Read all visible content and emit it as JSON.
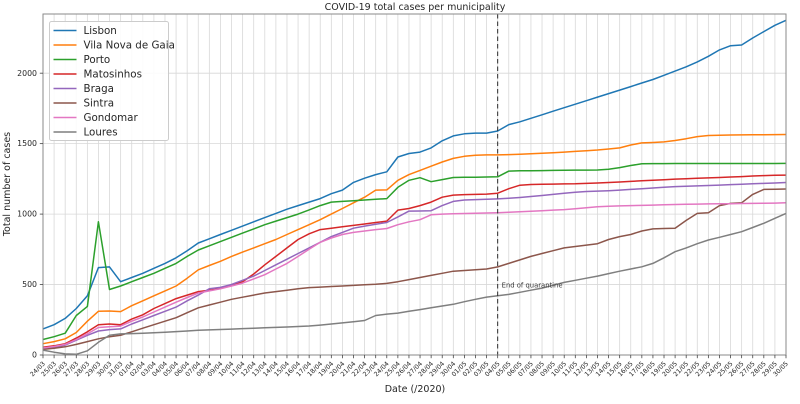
{
  "chart_data": {
    "type": "line",
    "title": "COVID-19 total cases per municipality",
    "xlabel": "Date (/2020)",
    "ylabel": "Total number of cases",
    "grid": true,
    "legend_position": "upper left",
    "ylim": [
      0,
      2420
    ],
    "yticks": [
      0,
      500,
      1000,
      1500,
      2000
    ],
    "x_tick_labels": [
      "24/03",
      "25/03",
      "26/03",
      "27/03",
      "28/03",
      "29/03",
      "30/03",
      "31/03",
      "01/04",
      "02/04",
      "03/04",
      "04/04",
      "05/04",
      "06/04",
      "07/04",
      "08/04",
      "09/04",
      "10/04",
      "11/04",
      "12/04",
      "13/04",
      "14/04",
      "15/04",
      "16/04",
      "17/04",
      "18/04",
      "19/04",
      "20/04",
      "21/04",
      "22/04",
      "23/04",
      "24/04",
      "25/04",
      "26/04",
      "27/04",
      "28/04",
      "29/04",
      "30/04",
      "01/05",
      "02/05",
      "03/05",
      "04/05",
      "05/05",
      "06/05",
      "07/05",
      "08/05",
      "09/05",
      "10/05",
      "11/05",
      "12/05",
      "13/05",
      "14/05",
      "15/05",
      "16/05",
      "17/05",
      "18/05",
      "19/05",
      "20/05",
      "21/05",
      "22/05",
      "23/05",
      "24/05",
      "25/05",
      "26/05",
      "27/05",
      "28/05",
      "29/05",
      "30/05"
    ],
    "vline": {
      "x_label": "04/05",
      "x_index": 41,
      "style": "dashed",
      "color": "#2b2b2b"
    },
    "annotation": {
      "text": "End of quarantine",
      "x_index": 41,
      "y_value": 480
    },
    "colors": {
      "grid": "#d8d8d8",
      "spine": "#8a8a8a",
      "legend_border": "#cccccc"
    },
    "series": [
      {
        "name": "Lisbon",
        "color": "#1f77b4",
        "values": [
          185,
          215,
          260,
          330,
          420,
          620,
          625,
          520,
          550,
          580,
          615,
          650,
          690,
          740,
          795,
          825,
          855,
          885,
          915,
          945,
          975,
          1005,
          1035,
          1060,
          1085,
          1110,
          1145,
          1170,
          1225,
          1255,
          1280,
          1300,
          1405,
          1430,
          1440,
          1470,
          1520,
          1555,
          1570,
          1575,
          1575,
          1590,
          1635,
          1655,
          1680,
          1705,
          1730,
          1755,
          1780,
          1805,
          1830,
          1855,
          1880,
          1905,
          1930,
          1955,
          1985,
          2015,
          2045,
          2080,
          2120,
          2165,
          2195,
          2200,
          2250,
          2295,
          2340,
          2375
        ]
      },
      {
        "name": "Vila Nova de Gaia",
        "color": "#ff7f0e",
        "values": [
          80,
          95,
          115,
          160,
          240,
          310,
          312,
          308,
          350,
          385,
          420,
          455,
          490,
          545,
          605,
          635,
          665,
          700,
          730,
          760,
          790,
          820,
          855,
          890,
          925,
          960,
          1000,
          1040,
          1080,
          1120,
          1170,
          1172,
          1240,
          1280,
          1310,
          1340,
          1370,
          1395,
          1410,
          1418,
          1420,
          1420,
          1422,
          1424,
          1428,
          1432,
          1436,
          1440,
          1445,
          1450,
          1455,
          1462,
          1470,
          1490,
          1505,
          1508,
          1512,
          1522,
          1535,
          1550,
          1558,
          1560,
          1561,
          1562,
          1563,
          1563,
          1564,
          1565
        ]
      },
      {
        "name": "Porto",
        "color": "#2ca02c",
        "values": [
          110,
          130,
          155,
          280,
          345,
          945,
          465,
          490,
          520,
          550,
          580,
          615,
          650,
          700,
          745,
          775,
          805,
          835,
          865,
          895,
          925,
          950,
          975,
          1000,
          1030,
          1060,
          1085,
          1090,
          1095,
          1100,
          1105,
          1110,
          1190,
          1240,
          1258,
          1230,
          1245,
          1260,
          1262,
          1262,
          1263,
          1265,
          1305,
          1307,
          1308,
          1309,
          1310,
          1311,
          1312,
          1312,
          1313,
          1318,
          1330,
          1345,
          1357,
          1358,
          1358,
          1359,
          1359,
          1359,
          1359,
          1359,
          1359,
          1359,
          1359,
          1359,
          1359,
          1360
        ]
      },
      {
        "name": "Matosinhos",
        "color": "#d62728",
        "values": [
          55,
          65,
          80,
          120,
          165,
          215,
          220,
          215,
          255,
          285,
          330,
          365,
          400,
          425,
          450,
          460,
          472,
          495,
          520,
          575,
          640,
          700,
          760,
          820,
          860,
          890,
          900,
          910,
          920,
          930,
          940,
          950,
          1028,
          1040,
          1060,
          1085,
          1120,
          1135,
          1138,
          1140,
          1142,
          1148,
          1180,
          1205,
          1210,
          1212,
          1213,
          1214,
          1215,
          1218,
          1221,
          1224,
          1228,
          1232,
          1236,
          1240,
          1244,
          1248,
          1251,
          1254,
          1257,
          1260,
          1263,
          1266,
          1270,
          1273,
          1275,
          1277
        ]
      },
      {
        "name": "Braga",
        "color": "#9467bd",
        "values": [
          45,
          55,
          70,
          105,
          140,
          170,
          180,
          185,
          220,
          250,
          280,
          310,
          340,
          385,
          425,
          470,
          480,
          500,
          530,
          560,
          600,
          640,
          680,
          720,
          760,
          800,
          840,
          870,
          900,
          915,
          928,
          940,
          980,
          1021,
          1022,
          1024,
          1060,
          1090,
          1100,
          1103,
          1105,
          1108,
          1112,
          1118,
          1125,
          1132,
          1140,
          1148,
          1155,
          1160,
          1163,
          1166,
          1170,
          1175,
          1180,
          1185,
          1190,
          1195,
          1198,
          1200,
          1203,
          1206,
          1209,
          1212,
          1215,
          1218,
          1221,
          1224
        ]
      },
      {
        "name": "Sintra",
        "color": "#8c564b",
        "values": [
          40,
          48,
          58,
          75,
          95,
          115,
          130,
          140,
          165,
          190,
          215,
          240,
          265,
          300,
          335,
          355,
          375,
          395,
          410,
          425,
          440,
          450,
          460,
          470,
          478,
          482,
          486,
          490,
          494,
          498,
          502,
          508,
          520,
          535,
          550,
          565,
          580,
          595,
          600,
          605,
          610,
          625,
          650,
          675,
          700,
          720,
          740,
          760,
          770,
          780,
          790,
          820,
          840,
          855,
          880,
          895,
          898,
          900,
          955,
          1005,
          1010,
          1060,
          1076,
          1080,
          1140,
          1175,
          1177,
          1178
        ]
      },
      {
        "name": "Gondomar",
        "color": "#e377c2",
        "values": [
          50,
          60,
          75,
          110,
          150,
          195,
          200,
          205,
          240,
          270,
          305,
          340,
          375,
          408,
          440,
          455,
          470,
          490,
          510,
          540,
          570,
          610,
          650,
          700,
          750,
          800,
          830,
          855,
          870,
          880,
          890,
          898,
          925,
          945,
          960,
          995,
          1000,
          1002,
          1004,
          1006,
          1008,
          1010,
          1013,
          1016,
          1020,
          1024,
          1028,
          1032,
          1038,
          1045,
          1052,
          1055,
          1058,
          1060,
          1062,
          1064,
          1066,
          1068,
          1070,
          1071,
          1072,
          1073,
          1074,
          1075,
          1076,
          1077,
          1078,
          1080
        ]
      },
      {
        "name": "Loures",
        "color": "#7f7f7f",
        "values": [
          35,
          20,
          8,
          5,
          30,
          90,
          140,
          150,
          152,
          155,
          158,
          162,
          166,
          170,
          175,
          178,
          181,
          184,
          187,
          190,
          193,
          196,
          199,
          202,
          206,
          212,
          220,
          228,
          236,
          245,
          280,
          290,
          297,
          310,
          322,
          335,
          348,
          360,
          378,
          395,
          411,
          420,
          430,
          445,
          460,
          475,
          495,
          515,
          530,
          545,
          560,
          578,
          595,
          610,
          626,
          650,
          690,
          733,
          760,
          790,
          816,
          835,
          855,
          875,
          905,
          935,
          970,
          1005
        ]
      }
    ]
  }
}
